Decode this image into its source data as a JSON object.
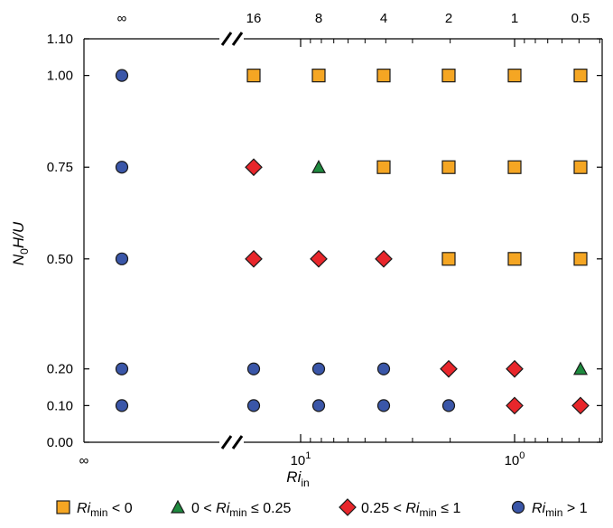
{
  "chart_data": {
    "type": "scatter",
    "title": "",
    "xlabel": {
      "main": "Ri",
      "sub": "in"
    },
    "ylabel": {
      "main": "N",
      "sub": "0",
      "rest": "H/U"
    },
    "x_scale": "log (reversed, with broken axis at ∞)",
    "top_axis_labels": [
      "∞",
      "16",
      "8",
      "4",
      "2",
      "1",
      "0.5"
    ],
    "bottom_axis_labels": [
      {
        "key": "inf",
        "base": "∞",
        "exp": ""
      },
      {
        "key": "ten1",
        "base": "10",
        "exp": "1"
      },
      {
        "key": "ten0",
        "base": "10",
        "exp": "0"
      }
    ],
    "x_columns": [
      "∞",
      16,
      8,
      4,
      2,
      1,
      0.5
    ],
    "y_ticks": [
      "0.00",
      "0.10",
      "0.20",
      "0.50",
      "0.75",
      "1.00",
      "1.10"
    ],
    "ylim": [
      0.0,
      1.1
    ],
    "series": [
      {
        "key": "neg",
        "marker": "square",
        "color": "#f5a623",
        "legend": {
          "pre": "",
          "main": "Ri",
          "sub": "min",
          "post": " < 0"
        },
        "points": [
          {
            "x": 16,
            "y": 1.0
          },
          {
            "x": 8,
            "y": 1.0
          },
          {
            "x": 4,
            "y": 1.0
          },
          {
            "x": 2,
            "y": 1.0
          },
          {
            "x": 1,
            "y": 1.0
          },
          {
            "x": 0.5,
            "y": 1.0
          },
          {
            "x": 4,
            "y": 0.75
          },
          {
            "x": 2,
            "y": 0.75
          },
          {
            "x": 1,
            "y": 0.75
          },
          {
            "x": 0.5,
            "y": 0.75
          },
          {
            "x": 2,
            "y": 0.5
          },
          {
            "x": 1,
            "y": 0.5
          },
          {
            "x": 0.5,
            "y": 0.5
          }
        ]
      },
      {
        "key": "low",
        "marker": "triangle",
        "color": "#1e8a3e",
        "legend": {
          "pre": "0 < ",
          "main": "Ri",
          "sub": "min",
          "post": " ≤ 0.25"
        },
        "points": [
          {
            "x": 8,
            "y": 0.75
          },
          {
            "x": 0.5,
            "y": 0.2
          }
        ]
      },
      {
        "key": "mid",
        "marker": "diamond",
        "color": "#e8262b",
        "legend": {
          "pre": "0.25 < ",
          "main": "Ri",
          "sub": "min",
          "post": " ≤ 1"
        },
        "points": [
          {
            "x": 16,
            "y": 0.75
          },
          {
            "x": 16,
            "y": 0.5
          },
          {
            "x": 8,
            "y": 0.5
          },
          {
            "x": 4,
            "y": 0.5
          },
          {
            "x": 2,
            "y": 0.2
          },
          {
            "x": 1,
            "y": 0.2
          },
          {
            "x": 1,
            "y": 0.1
          },
          {
            "x": 0.5,
            "y": 0.1
          }
        ]
      },
      {
        "key": "high",
        "marker": "circle",
        "color": "#3a56a8",
        "legend": {
          "pre": "",
          "main": "Ri",
          "sub": "min",
          "post": " > 1"
        },
        "points": [
          {
            "x": "∞",
            "y": 1.0
          },
          {
            "x": "∞",
            "y": 0.75
          },
          {
            "x": "∞",
            "y": 0.5
          },
          {
            "x": "∞",
            "y": 0.2
          },
          {
            "x": "∞",
            "y": 0.1
          },
          {
            "x": 16,
            "y": 0.2
          },
          {
            "x": 8,
            "y": 0.2
          },
          {
            "x": 4,
            "y": 0.2
          },
          {
            "x": 16,
            "y": 0.1
          },
          {
            "x": 8,
            "y": 0.1
          },
          {
            "x": 4,
            "y": 0.1
          },
          {
            "x": 2,
            "y": 0.1
          }
        ]
      }
    ],
    "legend_position": "bottom",
    "grid": false
  }
}
